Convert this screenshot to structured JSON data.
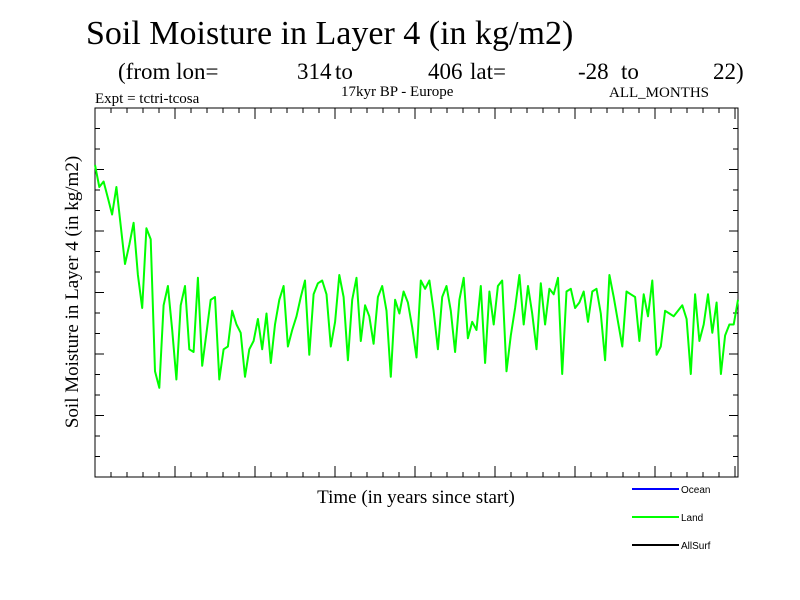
{
  "header": {
    "title": "Soil Moisture in Layer 4 (in kg/m2)",
    "from_lon_label": "(from lon=",
    "lon_start": "314",
    "to_label_1": "to",
    "lon_end": "406",
    "lat_label": "lat=",
    "lat_start": "-28",
    "to_label_2": "to",
    "lat_end": "22)",
    "experiment": "Expt = tctri-tcosa",
    "period_region": "17kyr BP - Europe",
    "months": "ALL_MONTHS"
  },
  "chart_data": {
    "type": "line",
    "title": "Soil Moisture in Layer 4 (in kg/m2)",
    "xlabel": "Time (in years since start)",
    "ylabel": "Soil Moisture in Layer 4 (in kg/m2)",
    "x_tick_labels": [],
    "y_tick_labels": [],
    "xlim": [
      0,
      300
    ],
    "ylim": [
      0,
      100
    ],
    "grid": false,
    "legend": {
      "placement": "bottom-right",
      "entries": [
        {
          "name": "Ocean",
          "color": "#0000ff"
        },
        {
          "name": "Land",
          "color": "#00ff00"
        },
        {
          "name": "AllSurf",
          "color": "#000000"
        }
      ]
    },
    "series": [
      {
        "name": "Land",
        "color": "#00ff00",
        "x": [
          0,
          2,
          4,
          6,
          8,
          10,
          12,
          14,
          16,
          18,
          20,
          22,
          24,
          26,
          28,
          30,
          32,
          34,
          36,
          38,
          40,
          42,
          44,
          46,
          48,
          50,
          52,
          54,
          56,
          58,
          60,
          62,
          64,
          66,
          68,
          70,
          72,
          74,
          76,
          78,
          80,
          82,
          84,
          86,
          88,
          90,
          92,
          94,
          96,
          98,
          100,
          102,
          104,
          106,
          108,
          110,
          112,
          114,
          116,
          118,
          120,
          122,
          124,
          126,
          128,
          130,
          132,
          134,
          136,
          138,
          140,
          142,
          144,
          146,
          148,
          150,
          152,
          154,
          156,
          158,
          160,
          162,
          164,
          166,
          168,
          170,
          172,
          174,
          176,
          178,
          180,
          182,
          184,
          186,
          188,
          190,
          192,
          194,
          196,
          198,
          200,
          202,
          204,
          206,
          208,
          210,
          212,
          214,
          216,
          218,
          220,
          222,
          224,
          226,
          228,
          230,
          232,
          234,
          236,
          238,
          240,
          242,
          244,
          246,
          248,
          250,
          252,
          254,
          256,
          258,
          260,
          262,
          264,
          266,
          268,
          270,
          272,
          274,
          276,
          278,
          280,
          282,
          284,
          286,
          288,
          290,
          292,
          294,
          296,
          298,
          300
        ],
        "values": [
          100,
          92,
          94,
          88,
          82,
          92,
          78,
          64,
          71,
          79,
          60,
          48,
          77,
          73,
          25,
          19,
          49,
          56,
          40,
          22,
          49,
          56,
          33,
          32,
          59,
          27,
          39,
          51,
          52,
          22,
          33,
          34,
          47,
          42,
          39,
          23,
          33,
          36,
          44,
          33,
          46,
          28,
          42,
          51,
          56,
          34,
          40,
          45,
          52,
          58,
          31,
          53,
          57,
          58,
          53,
          34,
          43,
          60,
          52,
          29,
          51,
          59,
          36,
          49,
          45,
          35,
          52,
          56,
          47,
          23,
          51,
          46,
          54,
          50,
          41,
          30,
          58,
          55,
          58,
          47,
          33,
          52,
          56,
          47,
          32,
          51,
          59,
          37,
          43,
          40,
          56,
          28,
          54,
          42,
          56,
          58,
          25,
          38,
          48,
          60,
          42,
          56,
          46,
          33,
          57,
          42,
          55,
          53,
          59,
          24,
          54,
          55,
          48,
          50,
          54,
          43,
          54,
          55,
          46,
          29,
          60,
          52,
          43,
          34,
          54,
          53,
          52,
          36,
          53,
          45,
          58,
          31,
          34,
          47,
          46,
          45,
          47,
          49,
          44,
          24,
          53,
          36,
          42,
          53,
          39,
          50,
          24,
          38,
          42,
          42,
          51
        ]
      }
    ]
  }
}
